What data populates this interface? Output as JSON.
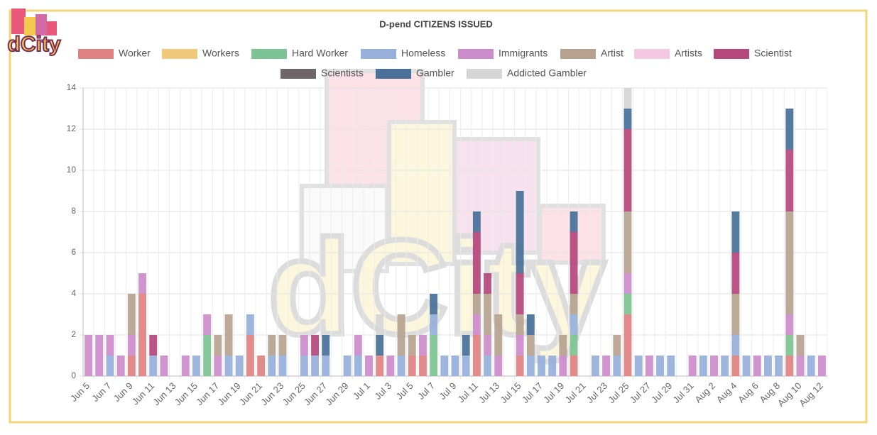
{
  "logo": "dCity",
  "chart_data": {
    "type": "bar",
    "stacked": true,
    "title": "D-pend CITIZENS ISSUED",
    "categories": [
      "Jun 5",
      null,
      "Jun 7",
      null,
      "Jun 9",
      null,
      "Jun 11",
      null,
      "Jun 13",
      null,
      "Jun 15",
      null,
      "Jun 17",
      null,
      "Jun 19",
      null,
      "Jun 21",
      null,
      "Jun 23",
      null,
      "Jun 25",
      null,
      "Jun 27",
      null,
      "Jun 29",
      null,
      "Jul 1",
      null,
      "Jul 3",
      null,
      "Jul 5",
      null,
      "Jul 7",
      null,
      "Jul 9",
      null,
      "Jul 11",
      null,
      "Jul 13",
      null,
      "Jul 15",
      null,
      "Jul 17",
      null,
      "Jul 19",
      null,
      "Jul 21",
      null,
      "Jul 23",
      null,
      "Jul 25",
      null,
      "Jul 27",
      null,
      "Jul 29",
      null,
      "Jul 31",
      null,
      "Aug 2",
      null,
      "Aug 4",
      null,
      "Aug 6",
      null,
      "Aug 8",
      null,
      "Aug 10",
      null,
      "Aug 12"
    ],
    "series": [
      {
        "name": "Worker",
        "color": "#e08181",
        "values": [
          0,
          0,
          0,
          0,
          1,
          4,
          0,
          0,
          0,
          0,
          0,
          0,
          0,
          0,
          0,
          2,
          1,
          0,
          0,
          0,
          0,
          0,
          0,
          0,
          0,
          0,
          0,
          1,
          0,
          0,
          1,
          1,
          0,
          0,
          0,
          0,
          2,
          0,
          0,
          0,
          1,
          0,
          0,
          0,
          0,
          1,
          0,
          0,
          0,
          0,
          3,
          0,
          0,
          0,
          0,
          0,
          0,
          0,
          0,
          0,
          1,
          0,
          0,
          0,
          0,
          1,
          0,
          0,
          0
        ]
      },
      {
        "name": "Workers",
        "color": "#f0c87a",
        "values": [
          0,
          0,
          0,
          0,
          0,
          0,
          0,
          0,
          0,
          0,
          0,
          0,
          0,
          0,
          0,
          0,
          0,
          0,
          0,
          0,
          0,
          0,
          0,
          0,
          0,
          0,
          0,
          0,
          0,
          0,
          0,
          0,
          0,
          0,
          0,
          0,
          0,
          0,
          0,
          0,
          0,
          0,
          0,
          0,
          0,
          0,
          0,
          0,
          0,
          0,
          0,
          0,
          0,
          0,
          0,
          0,
          0,
          0,
          0,
          0,
          0,
          0,
          0,
          0,
          0,
          0,
          0,
          0,
          0
        ]
      },
      {
        "name": "Hard Worker",
        "color": "#7dc393",
        "values": [
          0,
          0,
          0,
          0,
          0,
          0,
          0,
          0,
          0,
          0,
          0,
          2,
          0,
          0,
          0,
          0,
          0,
          0,
          0,
          0,
          0,
          0,
          0,
          0,
          0,
          0,
          0,
          0,
          0,
          0,
          0,
          0,
          2,
          0,
          0,
          0,
          0,
          0,
          0,
          0,
          0,
          0,
          0,
          0,
          0,
          1,
          0,
          0,
          0,
          0,
          1,
          0,
          0,
          0,
          0,
          0,
          0,
          0,
          0,
          0,
          0,
          0,
          0,
          0,
          0,
          1,
          0,
          0,
          0
        ]
      },
      {
        "name": "Homeless",
        "color": "#96afdb",
        "values": [
          0,
          0,
          1,
          0,
          0,
          0,
          1,
          0,
          0,
          0,
          1,
          0,
          0,
          1,
          1,
          1,
          0,
          1,
          1,
          0,
          1,
          1,
          1,
          0,
          1,
          1,
          0,
          0,
          0,
          1,
          0,
          0,
          1,
          1,
          1,
          1,
          0,
          1,
          0,
          0,
          0,
          1,
          1,
          1,
          0,
          1,
          0,
          1,
          0,
          1,
          0,
          1,
          0,
          1,
          1,
          0,
          0,
          1,
          0,
          1,
          1,
          1,
          0,
          1,
          1,
          0,
          0,
          1,
          0
        ]
      },
      {
        "name": "Immigrants",
        "color": "#cc8bca",
        "values": [
          2,
          2,
          1,
          1,
          1,
          1,
          0,
          1,
          0,
          1,
          0,
          1,
          1,
          0,
          0,
          0,
          0,
          0,
          0,
          0,
          1,
          0,
          0,
          0,
          0,
          1,
          1,
          0,
          1,
          0,
          0,
          1,
          0,
          0,
          0,
          0,
          1,
          1,
          1,
          0,
          1,
          0,
          0,
          0,
          1,
          0,
          0,
          0,
          1,
          0,
          1,
          0,
          1,
          0,
          0,
          0,
          1,
          0,
          1,
          0,
          0,
          0,
          1,
          0,
          0,
          1,
          1,
          0,
          1
        ]
      },
      {
        "name": "Artist",
        "color": "#b6a28e",
        "values": [
          0,
          0,
          0,
          0,
          2,
          0,
          0,
          0,
          0,
          0,
          0,
          0,
          1,
          2,
          0,
          0,
          0,
          1,
          1,
          0,
          0,
          0,
          0,
          0,
          0,
          0,
          0,
          0,
          0,
          2,
          1,
          0,
          0,
          0,
          0,
          0,
          1,
          2,
          2,
          0,
          1,
          1,
          0,
          0,
          1,
          1,
          0,
          0,
          0,
          1,
          3,
          0,
          0,
          0,
          0,
          0,
          0,
          0,
          0,
          0,
          2,
          0,
          0,
          0,
          0,
          5,
          1,
          0,
          0
        ]
      },
      {
        "name": "Artists",
        "color": "#f5c8e1",
        "values": [
          0,
          0,
          0,
          0,
          0,
          0,
          0,
          0,
          0,
          0,
          0,
          0,
          0,
          0,
          0,
          0,
          0,
          0,
          0,
          0,
          0,
          0,
          0,
          0,
          0,
          0,
          0,
          0,
          0,
          0,
          0,
          0,
          0,
          0,
          0,
          0,
          0,
          0,
          0,
          0,
          0,
          0,
          0,
          0,
          0,
          0,
          0,
          0,
          0,
          0,
          0,
          0,
          0,
          0,
          0,
          0,
          0,
          0,
          0,
          0,
          0,
          0,
          0,
          0,
          0,
          0,
          0,
          0,
          0
        ]
      },
      {
        "name": "Scientist",
        "color": "#b5477b",
        "values": [
          0,
          0,
          0,
          0,
          0,
          0,
          1,
          0,
          0,
          0,
          0,
          0,
          0,
          0,
          0,
          0,
          0,
          0,
          0,
          0,
          0,
          1,
          0,
          0,
          0,
          0,
          0,
          0,
          0,
          0,
          0,
          0,
          0,
          0,
          0,
          0,
          3,
          1,
          0,
          0,
          2,
          0,
          0,
          0,
          0,
          3,
          0,
          0,
          0,
          0,
          4,
          0,
          0,
          0,
          0,
          0,
          0,
          0,
          0,
          0,
          2,
          0,
          0,
          0,
          0,
          3,
          0,
          0,
          0
        ]
      },
      {
        "name": "Scientists",
        "color": "#6e6668",
        "values": [
          0,
          0,
          0,
          0,
          0,
          0,
          0,
          0,
          0,
          0,
          0,
          0,
          0,
          0,
          0,
          0,
          0,
          0,
          0,
          0,
          0,
          0,
          0,
          0,
          0,
          0,
          0,
          0,
          0,
          0,
          0,
          0,
          0,
          0,
          0,
          0,
          0,
          0,
          0,
          0,
          0,
          0,
          0,
          0,
          0,
          0,
          0,
          0,
          0,
          0,
          0,
          0,
          0,
          0,
          0,
          0,
          0,
          0,
          0,
          0,
          0,
          0,
          0,
          0,
          0,
          0,
          0,
          0,
          0
        ]
      },
      {
        "name": "Gambler",
        "color": "#487098",
        "values": [
          0,
          0,
          0,
          0,
          0,
          0,
          0,
          0,
          0,
          0,
          0,
          0,
          0,
          0,
          0,
          0,
          0,
          0,
          0,
          0,
          0,
          0,
          1,
          0,
          0,
          0,
          0,
          1,
          0,
          0,
          0,
          0,
          1,
          0,
          0,
          1,
          1,
          0,
          0,
          0,
          4,
          1,
          0,
          0,
          0,
          1,
          0,
          0,
          0,
          0,
          1,
          0,
          0,
          0,
          0,
          0,
          0,
          0,
          0,
          0,
          2,
          0,
          0,
          0,
          0,
          2,
          0,
          0,
          0
        ]
      },
      {
        "name": "Addicted Gambler",
        "color": "#d6d6d6",
        "values": [
          0,
          0,
          0,
          0,
          0,
          0,
          0,
          0,
          0,
          0,
          0,
          0,
          0,
          0,
          0,
          0,
          0,
          0,
          0,
          0,
          0,
          0,
          0,
          0,
          0,
          0,
          0,
          1,
          0,
          0,
          0,
          0,
          0,
          0,
          0,
          0,
          0,
          0,
          0,
          0,
          0,
          0,
          0,
          0,
          0,
          0,
          0,
          0,
          0,
          0,
          1,
          0,
          0,
          0,
          0,
          0,
          0,
          0,
          0,
          0,
          0,
          0,
          0,
          0,
          0,
          0,
          0,
          0,
          0
        ]
      }
    ],
    "ylim": [
      0,
      14
    ],
    "yticks": [
      0,
      2,
      4,
      6,
      8,
      10,
      12,
      14
    ],
    "grid": true,
    "legend": "top"
  }
}
